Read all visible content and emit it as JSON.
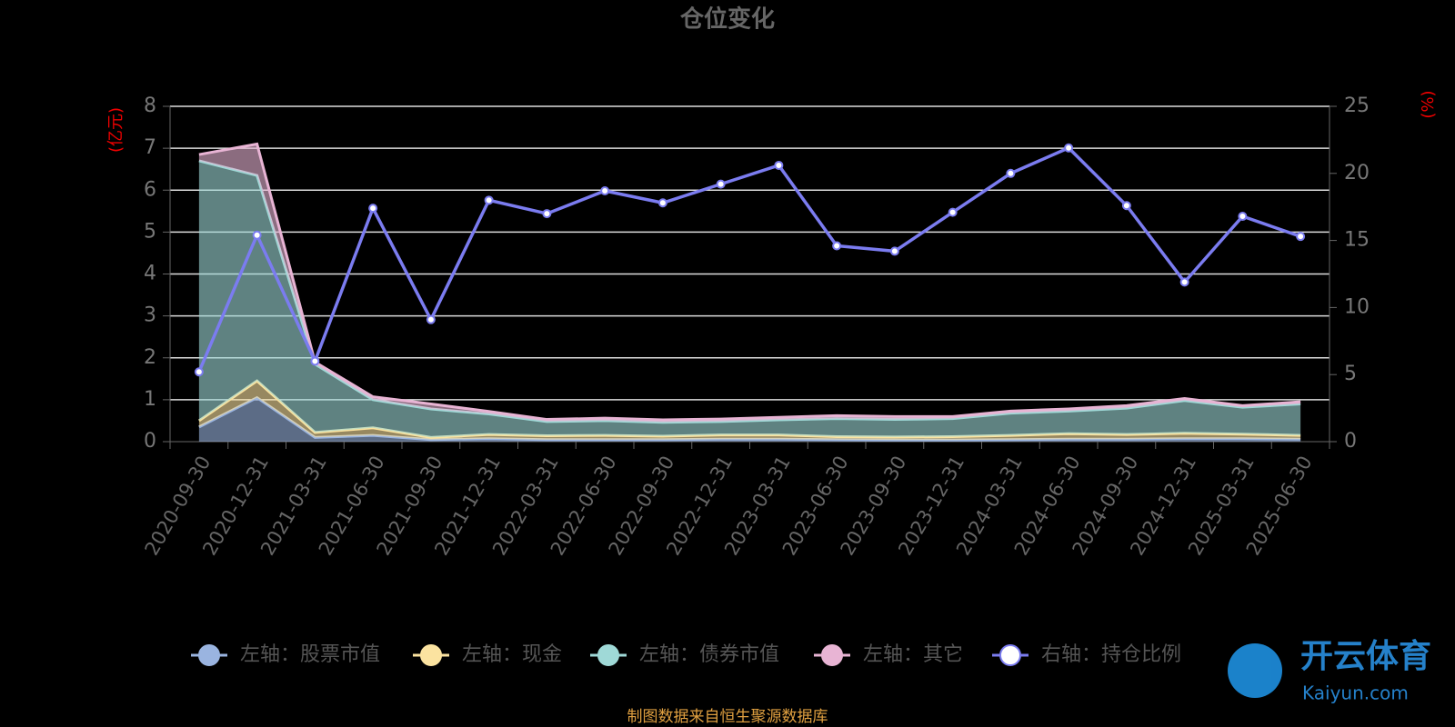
{
  "chart_data": {
    "type": "stacked-area-line",
    "title": "仓位变化",
    "y_label": "(亿元)",
    "y2_label": "(%)",
    "source": "制图数据来自恒生聚源数据库",
    "watermark": {
      "name": "开云体育",
      "site": "Kaiyun.com"
    },
    "categories": [
      "2020-09-30",
      "2020-12-31",
      "2021-03-31",
      "2021-06-30",
      "2021-09-30",
      "2021-12-31",
      "2022-03-31",
      "2022-06-30",
      "2022-09-30",
      "2022-12-31",
      "2023-03-31",
      "2023-06-30",
      "2023-09-30",
      "2023-12-31",
      "2024-03-31",
      "2024-06-30",
      "2024-09-30",
      "2024-12-31",
      "2025-03-31",
      "2025-06-30"
    ],
    "series": [
      {
        "name": "左轴：股票市值",
        "color": "#9ab4e0",
        "values": [
          0.35,
          1.05,
          0.1,
          0.15,
          0.05,
          0.07,
          0.05,
          0.05,
          0.05,
          0.06,
          0.06,
          0.05,
          0.04,
          0.04,
          0.05,
          0.06,
          0.06,
          0.07,
          0.07,
          0.06
        ]
      },
      {
        "name": "左轴：现金",
        "color": "#fbe3a0",
        "values": [
          0.15,
          0.4,
          0.12,
          0.18,
          0.05,
          0.1,
          0.09,
          0.1,
          0.08,
          0.1,
          0.1,
          0.07,
          0.07,
          0.08,
          0.1,
          0.13,
          0.11,
          0.13,
          0.11,
          0.09
        ]
      },
      {
        "name": "左轴：债券市值",
        "color": "#9fd9d7",
        "values": [
          6.2,
          4.9,
          1.63,
          0.67,
          0.68,
          0.49,
          0.34,
          0.35,
          0.33,
          0.32,
          0.36,
          0.43,
          0.42,
          0.43,
          0.53,
          0.54,
          0.63,
          0.78,
          0.64,
          0.75
        ]
      },
      {
        "name": "左轴：其它",
        "color": "#e8b4d4",
        "values": [
          0.15,
          0.75,
          0.05,
          0.07,
          0.12,
          0.06,
          0.05,
          0.06,
          0.06,
          0.06,
          0.06,
          0.07,
          0.07,
          0.05,
          0.05,
          0.05,
          0.06,
          0.05,
          0.04,
          0.05
        ]
      },
      {
        "name": "右轴：持仓比例",
        "color": "#7b7cf0",
        "axis": "y2",
        "values": [
          5.2,
          15.4,
          6.0,
          17.4,
          9.1,
          18.0,
          17.0,
          18.7,
          17.8,
          19.2,
          20.6,
          14.6,
          14.2,
          17.1,
          20.0,
          21.9,
          17.6,
          11.9,
          16.8,
          15.3
        ]
      }
    ],
    "ylim": [
      0,
      8
    ],
    "yticks": [
      0,
      1,
      2,
      3,
      4,
      5,
      6,
      7,
      8
    ],
    "y2lim": [
      0,
      25
    ],
    "y2ticks": [
      0,
      5,
      10,
      15,
      20,
      25
    ],
    "grid": true
  }
}
